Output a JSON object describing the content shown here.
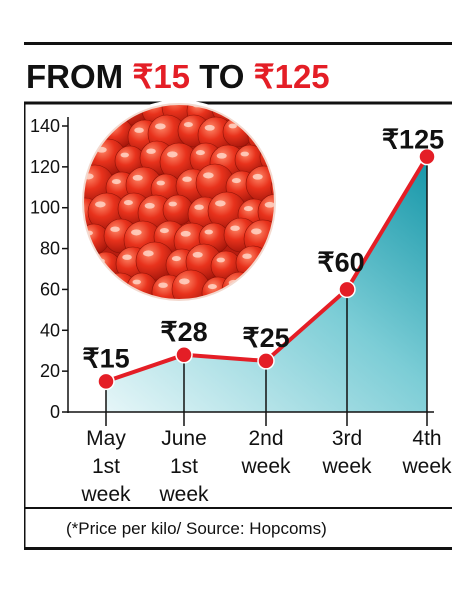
{
  "headline": {
    "part1": "FROM ",
    "part2": "₹15",
    "part3": " TO ",
    "part4": "₹125"
  },
  "note": "(*Price per kilo/ Source: Hopcoms)",
  "colors": {
    "accent_red": "#e41e26",
    "fill_teal": "#1f9fb0",
    "fill_light": "#d7f0f3",
    "tomato": "#e8321c"
  },
  "image": "tomatoes-photo",
  "chart_data": {
    "type": "area",
    "categories": [
      [
        "May",
        "1st",
        "week"
      ],
      [
        "June",
        "1st",
        "week"
      ],
      [
        "2nd",
        "week"
      ],
      [
        "3rd",
        "week"
      ],
      [
        "4th",
        "week"
      ]
    ],
    "values": [
      15,
      28,
      25,
      60,
      125
    ],
    "data_labels": [
      "₹15",
      "₹28",
      "₹25",
      "₹60",
      "₹125"
    ],
    "yticks": [
      "0",
      "20",
      "40",
      "60",
      "80",
      "100",
      "120",
      "140"
    ],
    "ylim": [
      0,
      140
    ],
    "grid": false,
    "xlabel": "",
    "ylabel": ""
  }
}
